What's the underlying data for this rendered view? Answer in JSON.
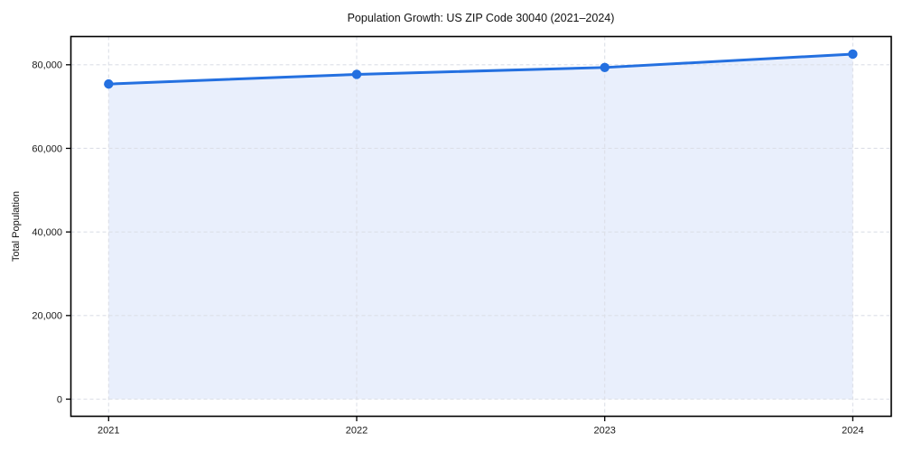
{
  "chart_data": {
    "type": "area",
    "title": "Population Growth: US ZIP Code 30040 (2021–2024)",
    "subtitle": "",
    "xlabel": "",
    "ylabel": "Total Population",
    "x": [
      2021,
      2022,
      2023,
      2024
    ],
    "xticklabels": [
      "2021",
      "2022",
      "2023",
      "2024"
    ],
    "series": [
      {
        "name": "Total Population",
        "values": [
          75400,
          77700,
          79350,
          82550
        ]
      }
    ],
    "yticks": [
      0,
      20000,
      40000,
      60000,
      80000
    ],
    "yticklabels": [
      "0",
      "20,000",
      "40,000",
      "60,000",
      "80,000"
    ],
    "ylim": [
      0,
      80000
    ],
    "grid": true,
    "grid_style": "dashed",
    "legend_position": "none",
    "marker": "circle",
    "colors": {
      "line": "#2470e0",
      "marker": "#2470e0",
      "area_fill": "#e9effc",
      "grid": "#dcdfe7",
      "axis": "#000000",
      "tick_text": "#1a1a1a",
      "title_text": "#111111",
      "background": "#ffffff"
    }
  }
}
